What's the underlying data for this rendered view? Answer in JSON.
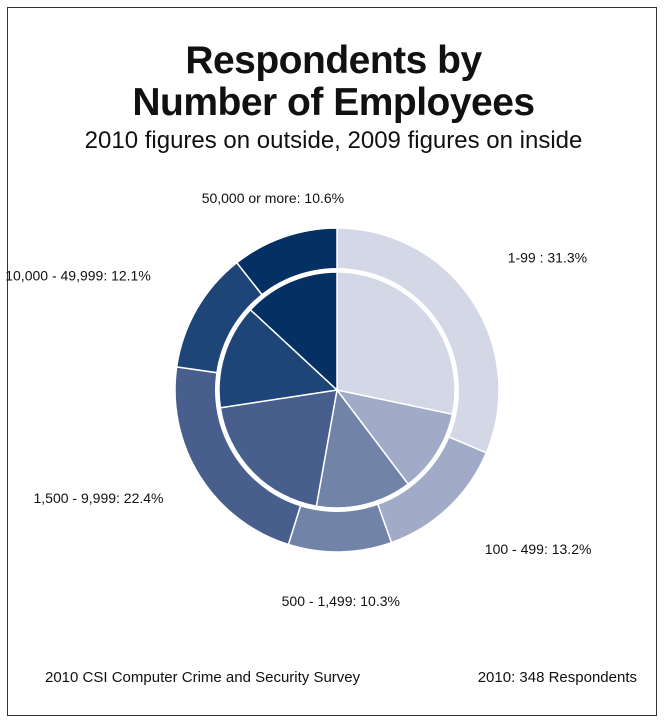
{
  "chart_data": {
    "type": "pie",
    "title_lines": [
      "Respondents by",
      "Number of Employees"
    ],
    "subtitle": "2010 figures on outside, 2009 figures on inside",
    "categories": [
      "1-99",
      "100 - 499",
      "500 - 1,499",
      "1,500 - 9,999",
      "10,000 - 49,999",
      "50,000 or more"
    ],
    "series": [
      {
        "key": "outer_2010",
        "values": [
          31.3,
          13.2,
          10.3,
          22.4,
          12.1,
          10.6
        ]
      },
      {
        "key": "inner_2009",
        "values": [
          28.3,
          11.4,
          13.1,
          19.8,
          14.3,
          13.1
        ]
      }
    ],
    "slice_labels": [
      "1-99 : 31.3%",
      "100 - 499: 13.2%",
      "500 - 1,499: 10.3%",
      "1,500 - 9,999: 22.4%",
      "10,000 - 49,999: 12.1%",
      "50,000 or more: 10.6%"
    ],
    "colors": [
      "#d3d7e6",
      "#a1abc7",
      "#7283a8",
      "#485f8d",
      "#1e4578",
      "#053064"
    ]
  },
  "footer": {
    "source": "2010 CSI Computer Crime and Security Survey",
    "respondents": "2010: 348 Respondents"
  }
}
